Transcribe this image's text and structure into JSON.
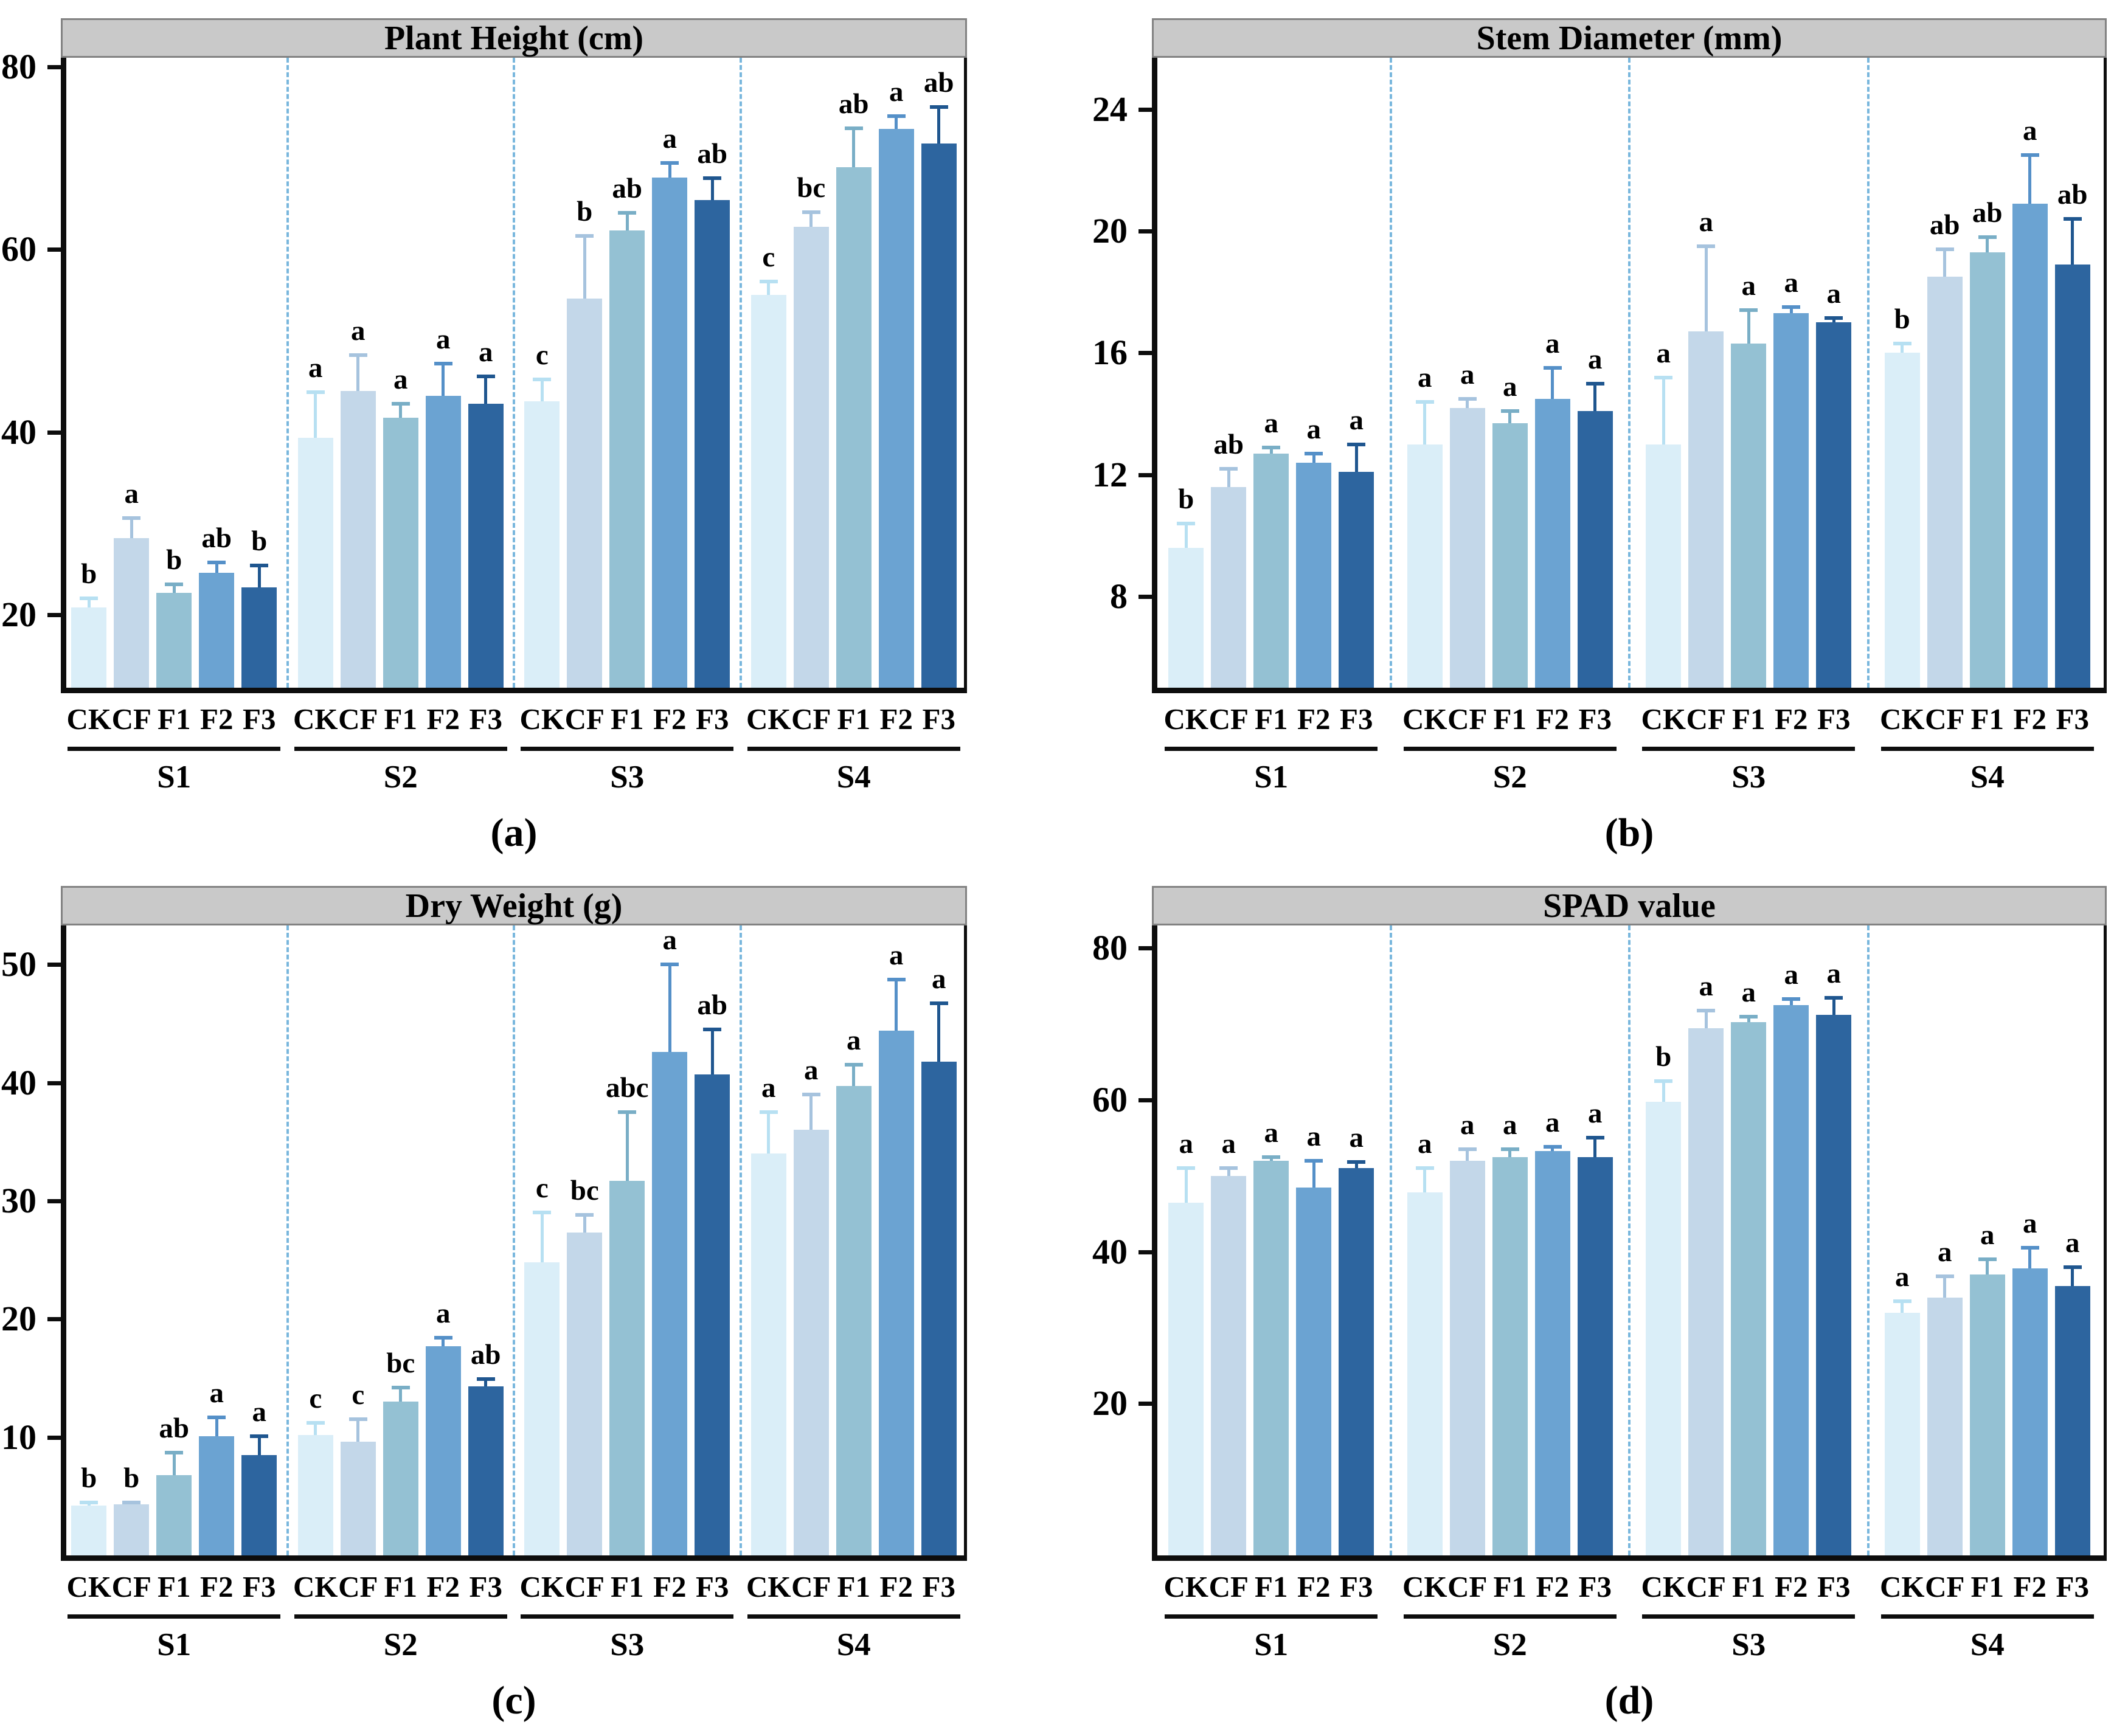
{
  "figure": {
    "panel_tags": [
      "(a)",
      "(b)",
      "(c)",
      "(d)"
    ],
    "series_labels": [
      "CK",
      "CF",
      "F1",
      "F2",
      "F3"
    ],
    "group_labels": [
      "S1",
      "S2",
      "S3",
      "S4"
    ],
    "bar_colors": [
      "#daeef8",
      "#c3d7e9",
      "#94c1d3",
      "#6ba3d2",
      "#2d659f"
    ],
    "error_bar_colors": [
      "#b7e0f2",
      "#a6c3de",
      "#79aec6",
      "#5590c8",
      "#1f568f"
    ],
    "separator_color": "#79b7dd",
    "title_band_color": "#c9c9c9"
  },
  "chart_data": [
    {
      "type": "bar",
      "tag": "(a)",
      "title": "Plant Height (cm)",
      "ylabel": "",
      "ylim": [
        12,
        81
      ],
      "yticks": [
        20,
        40,
        60,
        80
      ],
      "grid": false,
      "legend_position": "none",
      "groups": [
        "S1",
        "S2",
        "S3",
        "S4"
      ],
      "series_labels": [
        "CK",
        "CF",
        "F1",
        "F2",
        "F3"
      ],
      "values": [
        [
          20.8,
          28.4,
          22.4,
          24.6,
          23.0
        ],
        [
          39.4,
          44.5,
          41.6,
          44.0,
          43.1
        ],
        [
          43.4,
          54.6,
          62.1,
          67.9,
          65.4
        ],
        [
          55.0,
          62.5,
          69.0,
          73.2,
          71.6
        ]
      ],
      "errors": [
        [
          1.0,
          2.2,
          0.9,
          1.1,
          2.4
        ],
        [
          5.0,
          3.9,
          1.5,
          3.5,
          3.0
        ],
        [
          2.4,
          6.9,
          1.9,
          1.6,
          2.4
        ],
        [
          1.5,
          1.6,
          4.3,
          1.4,
          4.0
        ]
      ],
      "letters": [
        [
          "b",
          "a",
          "b",
          "ab",
          "b"
        ],
        [
          "a",
          "a",
          "a",
          "a",
          "a"
        ],
        [
          "c",
          "b",
          "ab",
          "a",
          "ab"
        ],
        [
          "c",
          "bc",
          "ab",
          "a",
          "ab"
        ]
      ]
    },
    {
      "type": "bar",
      "tag": "(b)",
      "title": "Stem Diameter (mm)",
      "ylabel": "",
      "ylim": [
        5,
        25.7
      ],
      "yticks": [
        8,
        12,
        16,
        20,
        24
      ],
      "grid": false,
      "legend_position": "none",
      "groups": [
        "S1",
        "S2",
        "S3",
        "S4"
      ],
      "series_labels": [
        "CK",
        "CF",
        "F1",
        "F2",
        "F3"
      ],
      "values": [
        [
          9.6,
          11.6,
          12.7,
          12.4,
          12.1
        ],
        [
          13.0,
          14.2,
          13.7,
          14.5,
          14.1
        ],
        [
          13.0,
          16.7,
          16.3,
          17.3,
          17.0
        ],
        [
          16.0,
          18.5,
          19.3,
          20.9,
          18.9
        ]
      ],
      "errors": [
        [
          0.8,
          0.6,
          0.2,
          0.3,
          0.9
        ],
        [
          1.4,
          0.3,
          0.4,
          1.0,
          0.9
        ],
        [
          2.2,
          2.8,
          1.1,
          0.2,
          0.15
        ],
        [
          0.3,
          0.9,
          0.5,
          1.6,
          1.5
        ]
      ],
      "letters": [
        [
          "b",
          "ab",
          "a",
          "a",
          "a"
        ],
        [
          "a",
          "a",
          "a",
          "a",
          "a"
        ],
        [
          "a",
          "a",
          "a",
          "a",
          "a"
        ],
        [
          "b",
          "ab",
          "ab",
          "a",
          "ab"
        ]
      ]
    },
    {
      "type": "bar",
      "tag": "(c)",
      "title": "Dry Weight (g)",
      "ylabel": "",
      "ylim": [
        0,
        53.3
      ],
      "yticks": [
        10,
        20,
        30,
        40,
        50
      ],
      "grid": false,
      "legend_position": "none",
      "groups": [
        "S1",
        "S2",
        "S3",
        "S4"
      ],
      "series_labels": [
        "CK",
        "CF",
        "F1",
        "F2",
        "F3"
      ],
      "values": [
        [
          4.2,
          4.3,
          6.8,
          10.1,
          8.5
        ],
        [
          10.2,
          9.6,
          13.0,
          17.7,
          14.3
        ],
        [
          24.8,
          27.3,
          31.7,
          42.6,
          40.7
        ],
        [
          34.0,
          36.0,
          39.7,
          44.4,
          41.8
        ]
      ],
      "errors": [
        [
          0.3,
          0.2,
          1.9,
          1.6,
          1.6
        ],
        [
          1.0,
          1.9,
          1.2,
          0.7,
          0.6
        ],
        [
          4.2,
          1.5,
          5.8,
          7.4,
          3.8
        ],
        [
          3.5,
          3.0,
          1.8,
          4.3,
          4.9
        ]
      ],
      "letters": [
        [
          "b",
          "b",
          "ab",
          "a",
          "a"
        ],
        [
          "c",
          "c",
          "bc",
          "a",
          "ab"
        ],
        [
          "c",
          "bc",
          "abc",
          "a",
          "ab"
        ],
        [
          "a",
          "a",
          "a",
          "a",
          "a"
        ]
      ]
    },
    {
      "type": "bar",
      "tag": "(d)",
      "title": "SPAD value",
      "ylabel": "",
      "ylim": [
        0,
        83
      ],
      "yticks": [
        20,
        40,
        60,
        80
      ],
      "grid": false,
      "legend_position": "none",
      "groups": [
        "S1",
        "S2",
        "S3",
        "S4"
      ],
      "series_labels": [
        "CK",
        "CF",
        "F1",
        "F2",
        "F3"
      ],
      "values": [
        [
          46.5,
          50.0,
          52.0,
          48.5,
          51.0
        ],
        [
          47.8,
          52.0,
          52.5,
          53.3,
          52.5
        ],
        [
          59.8,
          69.5,
          70.3,
          72.5,
          71.2
        ],
        [
          32.0,
          34.0,
          37.0,
          37.8,
          35.5
        ]
      ],
      "errors": [
        [
          4.5,
          1.0,
          0.5,
          3.5,
          0.8
        ],
        [
          3.2,
          1.5,
          1.0,
          0.5,
          2.5
        ],
        [
          2.7,
          2.3,
          0.7,
          0.8,
          2.3
        ],
        [
          1.5,
          2.8,
          2.0,
          2.7,
          2.5
        ]
      ],
      "letters": [
        [
          "a",
          "a",
          "a",
          "a",
          "a"
        ],
        [
          "a",
          "a",
          "a",
          "a",
          "a"
        ],
        [
          "b",
          "a",
          "a",
          "a",
          "a"
        ],
        [
          "a",
          "a",
          "a",
          "a",
          "a"
        ]
      ]
    }
  ]
}
